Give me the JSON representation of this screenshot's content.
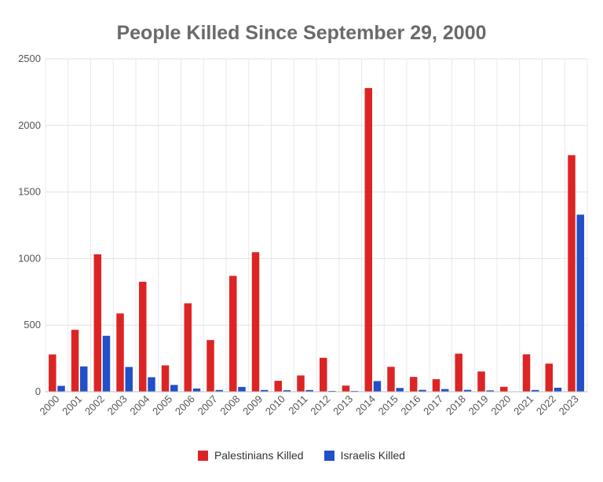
{
  "chart_data": {
    "type": "bar",
    "title": "People Killed Since September 29, 2000",
    "xlabel": "",
    "ylabel": "",
    "ylim": [
      0,
      2500
    ],
    "yticks": [
      "0",
      "500",
      "1000",
      "1500",
      "2000",
      "2500"
    ],
    "grid": true,
    "legend_position": "bottom",
    "categories": [
      "2000",
      "2001",
      "2002",
      "2003",
      "2004",
      "2005",
      "2006",
      "2007",
      "2008",
      "2009",
      "2010",
      "2011",
      "2012",
      "2013",
      "2014",
      "2015",
      "2016",
      "2017",
      "2018",
      "2019",
      "2020",
      "2021",
      "2022",
      "2023"
    ],
    "series": [
      {
        "name": "Palestinians Killed",
        "color": "#dd2424",
        "values": [
          280,
          465,
          1032,
          588,
          826,
          198,
          664,
          388,
          870,
          1048,
          82,
          122,
          255,
          46,
          2281,
          187,
          111,
          94,
          286,
          152,
          37,
          281,
          211,
          1777
        ]
      },
      {
        "name": "Israelis Killed",
        "color": "#2150c8",
        "values": [
          44,
          190,
          420,
          186,
          109,
          51,
          24,
          13,
          36,
          13,
          11,
          13,
          6,
          6,
          80,
          28,
          14,
          20,
          14,
          10,
          3,
          13,
          30,
          1330
        ]
      }
    ]
  }
}
